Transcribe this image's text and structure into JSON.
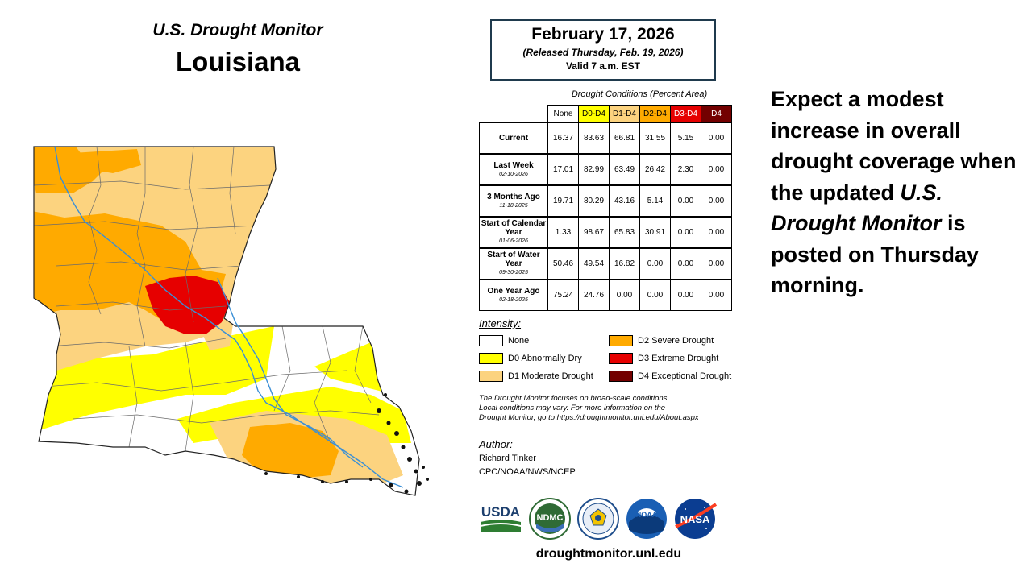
{
  "map": {
    "super_title": "U.S. Drought Monitor",
    "region": "Louisiana"
  },
  "date_box": {
    "date": "February 17, 2026",
    "released": "(Released Thursday, Feb. 19, 2026)",
    "valid": "Valid 7 a.m. EST"
  },
  "table": {
    "caption": "Drought Conditions (Percent Area)",
    "headers": [
      "None",
      "D0-D4",
      "D1-D4",
      "D2-D4",
      "D3-D4",
      "D4"
    ],
    "rows": [
      {
        "label": "Current",
        "date": "",
        "values": [
          "16.37",
          "83.63",
          "66.81",
          "31.55",
          "5.15",
          "0.00"
        ]
      },
      {
        "label": "Last Week",
        "date": "02-10-2026",
        "values": [
          "17.01",
          "82.99",
          "63.49",
          "26.42",
          "2.30",
          "0.00"
        ]
      },
      {
        "label": "3 Months Ago",
        "date": "11-18-2025",
        "values": [
          "19.71",
          "80.29",
          "43.16",
          "5.14",
          "0.00",
          "0.00"
        ]
      },
      {
        "label": "Start of Calendar Year",
        "date": "01-06-2026",
        "values": [
          "1.33",
          "98.67",
          "65.83",
          "30.91",
          "0.00",
          "0.00"
        ]
      },
      {
        "label": "Start of Water Year",
        "date": "09-30-2025",
        "values": [
          "50.46",
          "49.54",
          "16.82",
          "0.00",
          "0.00",
          "0.00"
        ]
      },
      {
        "label": "One Year Ago",
        "date": "02-18-2025",
        "values": [
          "75.24",
          "24.76",
          "0.00",
          "0.00",
          "0.00",
          "0.00"
        ]
      }
    ]
  },
  "legend": {
    "title": "Intensity:",
    "items": [
      {
        "label": "None",
        "color": "#ffffff"
      },
      {
        "label": "D0 Abnormally Dry",
        "color": "#ffff00"
      },
      {
        "label": "D1 Moderate Drought",
        "color": "#fcd37f"
      },
      {
        "label": "D2 Severe Drought",
        "color": "#ffaa00"
      },
      {
        "label": "D3 Extreme Drought",
        "color": "#e60000"
      },
      {
        "label": "D4 Exceptional Drought",
        "color": "#730000"
      }
    ]
  },
  "note": {
    "line1": "The Drought Monitor focuses on broad-scale conditions.",
    "line2": "Local conditions may vary. For more information on the",
    "line3": "Drought Monitor, go to https://droughtmonitor.unl.edu/About.aspx"
  },
  "author": {
    "title": "Author:",
    "name": "Richard Tinker",
    "org": "CPC/NOAA/NWS/NCEP"
  },
  "logos": {
    "usda": "USDA",
    "ndmc": "NDMC",
    "noaa": "NOAA",
    "nasa": "NASA"
  },
  "site_url": "droughtmonitor.unl.edu",
  "message": {
    "part1": "Expect a modest increase in overall drought coverage when the updated",
    "emphasis": "U.S. Drought Monitor",
    "part2": "is posted on Thursday morning."
  }
}
